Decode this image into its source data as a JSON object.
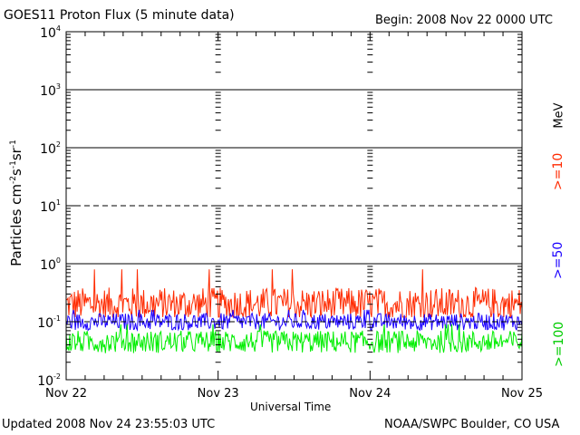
{
  "header": {
    "title": "GOES11 Proton Flux (5 minute data)",
    "begin": "Begin: 2008 Nov 22 0000 UTC"
  },
  "footer": {
    "updated": "Updated 2008 Nov 24 23:55:03 UTC",
    "credit": "NOAA/SWPC Boulder, CO USA"
  },
  "chart_data": {
    "type": "line",
    "title": "GOES11 Proton Flux (5 minute data)",
    "xlabel": "Universal Time",
    "ylabel": "Particles cm-2s-1sr-1",
    "yscale": "log",
    "ylim": [
      0.01,
      10000
    ],
    "xlim": [
      "2008-11-22 00:00",
      "2008-11-25 00:00"
    ],
    "x_tick_labels": [
      "Nov 22",
      "Nov 23",
      "Nov 24",
      "Nov 25"
    ],
    "y_tick_labels": [
      {
        "base": "10",
        "exp": "4"
      },
      {
        "base": "10",
        "exp": "3"
      },
      {
        "base": "10",
        "exp": "2"
      },
      {
        "base": "10",
        "exp": "1"
      },
      {
        "base": "10",
        "exp": "0"
      },
      {
        "base": "10",
        "exp": "-1"
      },
      {
        "base": "10",
        "exp": "-2"
      }
    ],
    "ylabel_parts": {
      "prefix": "Particles cm",
      "e1": "-2",
      "mid1": "s",
      "e2": "-1",
      "mid2": "sr",
      "e3": "-1"
    },
    "units_label": "MeV",
    "series": [
      {
        "name": ">=10",
        "color": "#ff2a00",
        "typical": 0.2,
        "min": 0.12,
        "max": 0.8
      },
      {
        "name": ">=50",
        "color": "#1a00ff",
        "typical": 0.1,
        "min": 0.06,
        "max": 0.16
      },
      {
        "name": ">=100",
        "color": "#00ee00",
        "typical": 0.045,
        "min": 0.025,
        "max": 0.09
      }
    ],
    "threshold_lines": [
      {
        "value": 1000,
        "style": "solid"
      },
      {
        "value": 100,
        "style": "solid"
      },
      {
        "value": 10,
        "style": "dashed"
      },
      {
        "value": 1,
        "style": "solid"
      },
      {
        "value": 0.1,
        "style": "dashed"
      }
    ],
    "grid": false
  }
}
